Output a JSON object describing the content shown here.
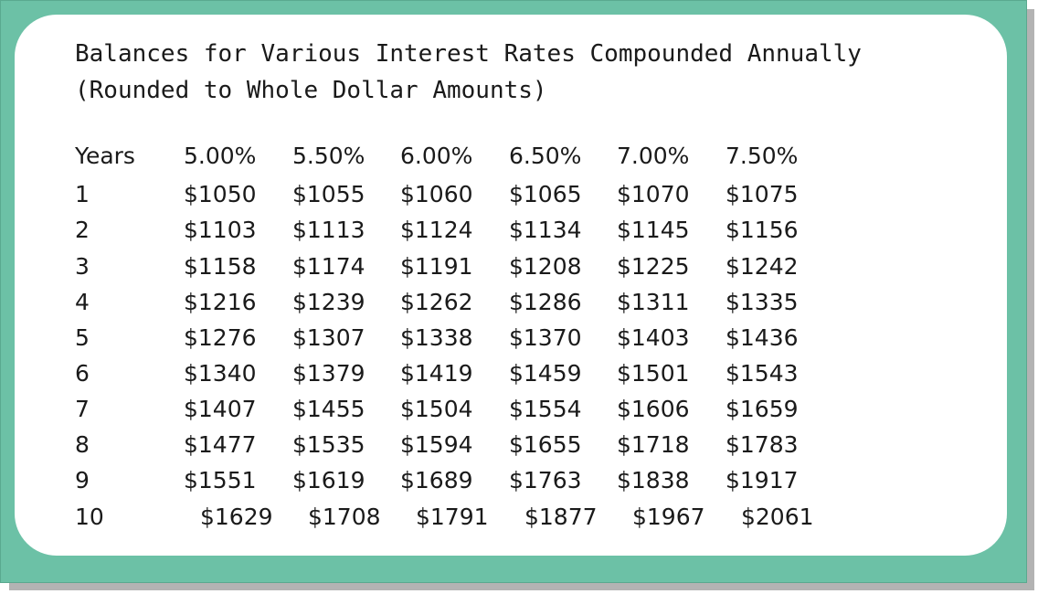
{
  "document": {
    "title_line1": "Balances for Various Interest Rates Compounded Annually",
    "title_line2": "(Rounded to Whole Dollar Amounts)"
  },
  "table": {
    "headers": [
      "Years",
      "5.00%",
      "5.50%",
      "6.00%",
      "6.50%",
      "7.00%",
      "7.50%"
    ],
    "rows": [
      [
        "1",
        "$1050",
        "$1055",
        "$1060",
        "$1065",
        "$1070",
        "$1075"
      ],
      [
        "2",
        "$1103",
        "$1113",
        "$1124",
        "$1134",
        "$1145",
        "$1156"
      ],
      [
        "3",
        "$1158",
        "$1174",
        "$1191",
        "$1208",
        "$1225",
        "$1242"
      ],
      [
        "4",
        "$1216",
        "$1239",
        "$1262",
        "$1286",
        "$1311",
        "$1335"
      ],
      [
        "5",
        "$1276",
        "$1307",
        "$1338",
        "$1370",
        "$1403",
        "$1436"
      ],
      [
        "6",
        "$1340",
        "$1379",
        "$1419",
        "$1459",
        "$1501",
        "$1543"
      ],
      [
        "7",
        "$1407",
        "$1455",
        "$1504",
        "$1554",
        "$1606",
        "$1659"
      ],
      [
        "8",
        "$1477",
        "$1535",
        "$1594",
        "$1655",
        "$1718",
        "$1783"
      ],
      [
        "9",
        "$1551",
        "$1619",
        "$1689",
        "$1763",
        "$1838",
        "$1917"
      ],
      [
        "10",
        "$1629",
        "$1708",
        "$1791",
        "$1877",
        "$1967",
        "$2061"
      ]
    ]
  },
  "colors": {
    "frame": "#6cc1a6",
    "shadow": "#b3b3b3",
    "card": "#ffffff",
    "text": "#1a1a1a"
  }
}
